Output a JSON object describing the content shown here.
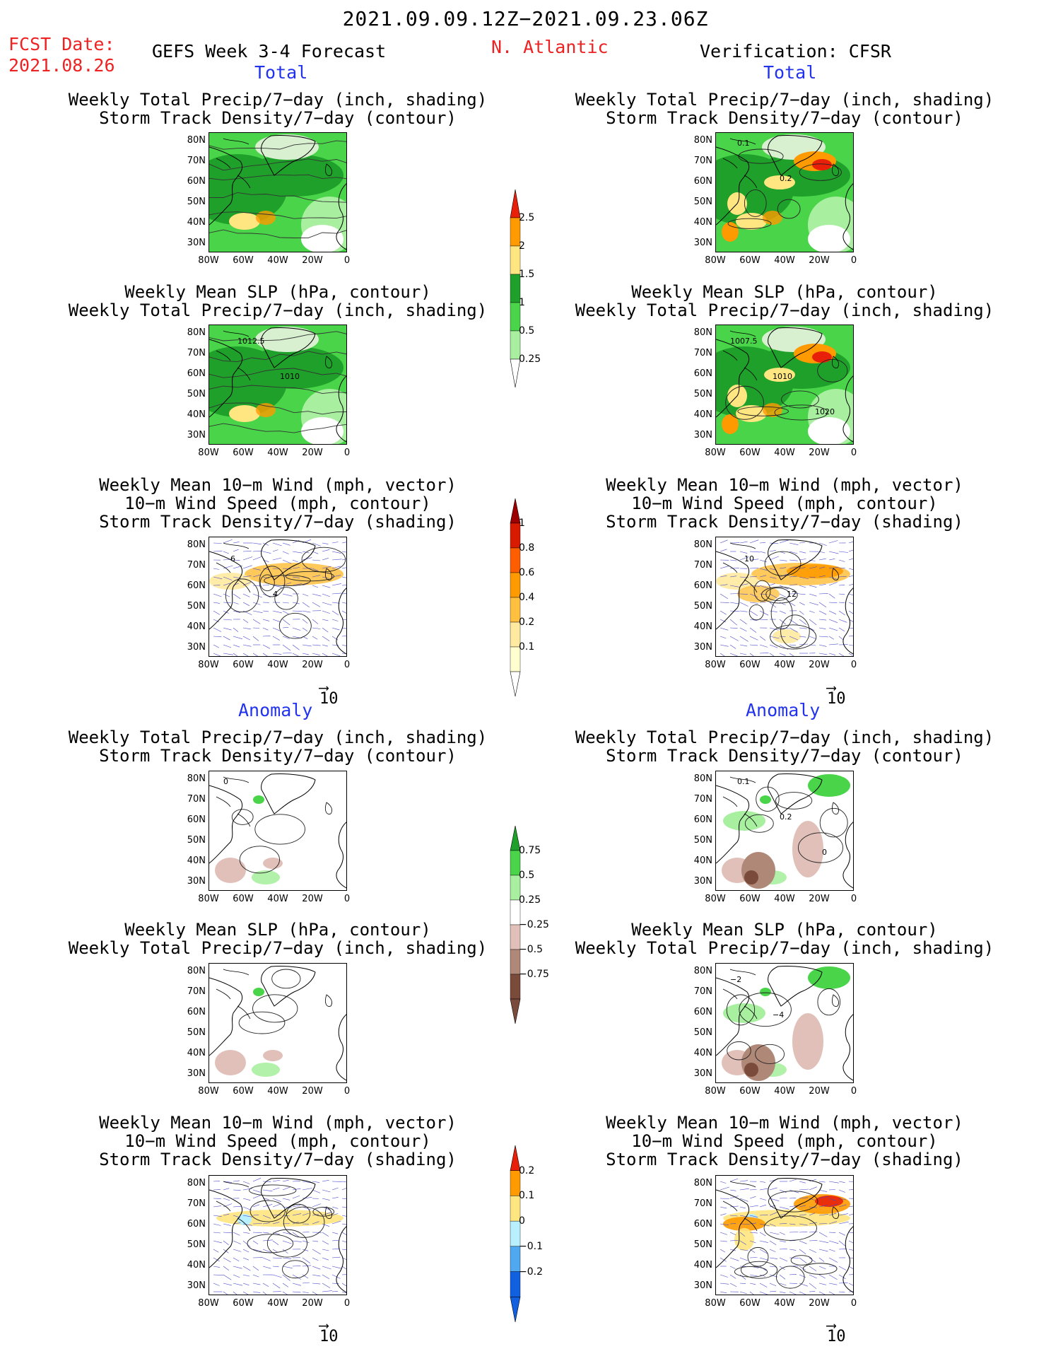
{
  "header": {
    "date_range": "2021.09.09.12Z−2021.09.23.06Z",
    "fcst_label": "FCST Date:",
    "fcst_date": "2021.08.26",
    "model": "GEFS Week 3-4 Forecast",
    "region": "N. Atlantic",
    "verification": "Verification: CFSR"
  },
  "sections": {
    "total": "Total",
    "anomaly": "Anomaly"
  },
  "panel_titles": {
    "precip_storm": "Weekly Total Precip/7−day (inch, shading)\nStorm Track Density/7−day (contour)",
    "slp_precip": "Weekly Mean SLP (hPa, contour)\nWeekly Total Precip/7−day (inch, shading)",
    "wind_storm": "Weekly Mean 10−m Wind (mph, vector)\n10−m Wind Speed (mph, contour)\nStorm Track Density/7−day (shading)"
  },
  "axes": {
    "lat": [
      "80N",
      "70N",
      "60N",
      "50N",
      "40N",
      "30N"
    ],
    "lon": [
      "80W",
      "60W",
      "40W",
      "20W",
      "0"
    ]
  },
  "vector_ref": "10",
  "colorbars": [
    {
      "labels": [
        "2.5",
        "2",
        "1.5",
        "1",
        "0.5",
        "0.25"
      ],
      "colors": [
        "#e8200a",
        "#ff9a00",
        "#ffe680",
        "#1fa02a",
        "#49d449",
        "#a8f0a0"
      ]
    },
    {
      "labels": [
        "1",
        "0.8",
        "0.6",
        "0.4",
        "0.2",
        "0.1"
      ],
      "colors": [
        "#9c0000",
        "#d81a00",
        "#ff5e00",
        "#ff9a00",
        "#ffc040",
        "#ffeaa0",
        "#ffffd0"
      ]
    },
    {
      "labels": [
        "0.75",
        "0.5",
        "0.25",
        "−0.25",
        "−0.5",
        "−0.75"
      ],
      "colors": [
        "#1fa02a",
        "#49d449",
        "#a8f0a0",
        "#ffffff",
        "#e0c0b8",
        "#b08878",
        "#7a4a3a"
      ]
    },
    {
      "labels": [
        "0.2",
        "0.1",
        "0",
        "−0.1",
        "−0.2"
      ],
      "colors": [
        "#e8200a",
        "#ff9a00",
        "#ffe680",
        "#b8f0ff",
        "#50a8f0",
        "#1060e0"
      ]
    }
  ],
  "panels": [
    {
      "id": "tot-fc-1",
      "kind": "precip",
      "contour_labels": []
    },
    {
      "id": "tot-vf-1",
      "kind": "precip-obs",
      "contour_labels": [
        "0.1",
        "0.2"
      ]
    },
    {
      "id": "tot-fc-2",
      "kind": "precip",
      "contour_labels": [
        "1012.5",
        "1010"
      ]
    },
    {
      "id": "tot-vf-2",
      "kind": "precip-obs",
      "contour_labels": [
        "1007.5",
        "1010",
        "1020"
      ]
    },
    {
      "id": "tot-fc-3",
      "kind": "wind",
      "contour_labels": [
        "6",
        "4"
      ]
    },
    {
      "id": "tot-vf-3",
      "kind": "wind-obs",
      "contour_labels": [
        "10",
        "12"
      ]
    },
    {
      "id": "ano-fc-1",
      "kind": "anom",
      "contour_labels": [
        "0"
      ]
    },
    {
      "id": "ano-vf-1",
      "kind": "anom-obs",
      "contour_labels": [
        "0.1",
        "0.2",
        "0"
      ]
    },
    {
      "id": "ano-fc-2",
      "kind": "anom",
      "contour_labels": []
    },
    {
      "id": "ano-vf-2",
      "kind": "anom-obs",
      "contour_labels": [
        "−2",
        "−4"
      ]
    },
    {
      "id": "ano-fc-3",
      "kind": "wind-anom",
      "contour_labels": []
    },
    {
      "id": "ano-vf-3",
      "kind": "wind-anom-obs",
      "contour_labels": []
    }
  ]
}
